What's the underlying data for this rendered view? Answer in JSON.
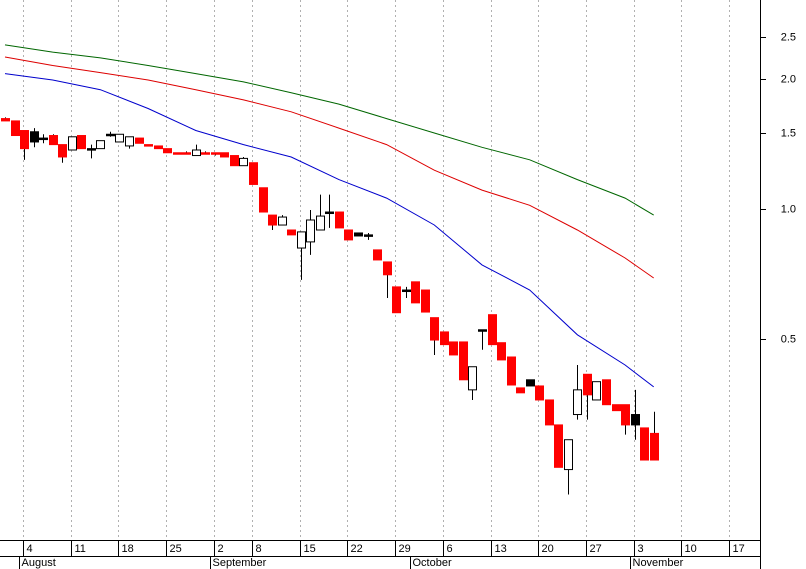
{
  "chart_data": {
    "type": "candlestick",
    "log_scale": true,
    "grid": true,
    "xlim": [
      -0.52,
      79.14
    ],
    "ylim": [
      0.171,
      3.05
    ],
    "yticks": [
      0.5,
      {
        "value": 1,
        "label": "1.0"
      },
      1.5,
      {
        "value": 2,
        "label": "2.0"
      },
      2.5
    ],
    "xticks": [
      {
        "value": 2,
        "label": "4"
      },
      {
        "value": 7,
        "label": "11"
      },
      {
        "value": 12,
        "label": "18"
      },
      {
        "value": 17,
        "label": "25"
      },
      {
        "value": 22,
        "label": "2"
      },
      {
        "value": 26,
        "label": "8"
      },
      {
        "value": 31,
        "label": "15"
      },
      {
        "value": 36,
        "label": "22"
      },
      {
        "value": 41,
        "label": "29"
      },
      {
        "value": 46,
        "label": "6"
      },
      {
        "value": 51,
        "label": "13"
      },
      {
        "value": 56,
        "label": "20"
      },
      {
        "value": 61,
        "label": "27"
      },
      {
        "value": 66,
        "label": "3"
      },
      {
        "value": 71,
        "label": "10"
      },
      {
        "value": 76,
        "label": "17"
      }
    ],
    "months": [
      {
        "value": 2,
        "label": "August"
      },
      {
        "value": 22,
        "label": "September"
      },
      {
        "value": 43,
        "label": "October"
      },
      {
        "value": 66,
        "label": "November"
      }
    ],
    "candles": {
      "x": [
        0,
        1,
        2,
        3,
        4,
        5,
        6,
        7,
        8,
        9,
        10,
        11,
        12,
        13,
        14,
        15,
        16,
        17,
        18,
        19,
        20,
        21,
        22,
        23,
        24,
        25,
        26,
        27,
        28,
        29,
        30,
        31,
        32,
        33,
        34,
        35,
        36,
        37,
        38,
        39,
        40,
        41,
        42,
        43,
        44,
        45,
        46,
        47,
        48,
        49,
        50,
        51,
        52,
        53,
        54,
        55,
        56,
        57,
        58,
        59,
        60,
        61,
        62,
        63,
        64,
        65,
        66,
        67,
        68
      ],
      "open": [
        1.62,
        1.6,
        1.52,
        1.51,
        1.46,
        1.48,
        1.41,
        1.37,
        1.48,
        1.38,
        1.38,
        1.49,
        1.43,
        1.4,
        1.46,
        1.41,
        1.4,
        1.38,
        1.35,
        1.35,
        1.33,
        1.35,
        1.35,
        1.35,
        1.33,
        1.26,
        1.28,
        1.12,
        0.968,
        0.918,
        0.894,
        0.812,
        0.839,
        0.894,
        0.984,
        0.984,
        0.894,
        0.88,
        0.871,
        0.804,
        0.754,
        0.66,
        0.649,
        0.678,
        0.649,
        0.56,
        0.519,
        0.492,
        0.492,
        0.381,
        0.525,
        0.569,
        0.49,
        0.454,
        0.385,
        0.402,
        0.389,
        0.361,
        0.316,
        0.249,
        0.334,
        0.414,
        0.361,
        0.402,
        0.352,
        0.352,
        0.334,
        0.311,
        0.302
      ],
      "high": [
        1.63,
        1.6,
        1.52,
        1.54,
        1.49,
        1.49,
        1.41,
        1.47,
        1.48,
        1.41,
        1.44,
        1.51,
        1.49,
        1.47,
        1.46,
        1.41,
        1.4,
        1.38,
        1.35,
        1.36,
        1.41,
        1.36,
        1.35,
        1.35,
        1.33,
        1.32,
        1.28,
        1.12,
        0.968,
        0.968,
        0.894,
        0.885,
        0.995,
        1.08,
        1.08,
        0.984,
        0.894,
        0.88,
        0.88,
        0.804,
        0.754,
        0.66,
        0.66,
        0.678,
        0.649,
        0.56,
        0.519,
        0.492,
        0.492,
        0.431,
        0.525,
        0.569,
        0.49,
        0.454,
        0.385,
        0.402,
        0.389,
        0.361,
        0.316,
        0.292,
        0.435,
        0.414,
        0.398,
        0.402,
        0.352,
        0.352,
        0.381,
        0.311,
        0.339
      ],
      "low": [
        1.6,
        1.48,
        1.3,
        1.39,
        1.42,
        1.41,
        1.28,
        1.37,
        1.38,
        1.31,
        1.38,
        1.47,
        1.43,
        1.38,
        1.42,
        1.4,
        1.38,
        1.35,
        1.34,
        1.34,
        1.33,
        1.34,
        1.33,
        1.32,
        1.26,
        1.26,
        1.14,
        0.984,
        0.894,
        0.918,
        0.871,
        0.685,
        0.783,
        0.894,
        0.904,
        0.904,
        0.848,
        0.866,
        0.848,
        0.762,
        0.622,
        0.575,
        0.622,
        0.606,
        0.577,
        0.459,
        0.485,
        0.459,
        0.402,
        0.361,
        0.472,
        0.485,
        0.447,
        0.391,
        0.375,
        0.389,
        0.361,
        0.316,
        0.252,
        0.218,
        0.325,
        0.325,
        0.361,
        0.352,
        0.341,
        0.3,
        0.292,
        0.262,
        0.262
      ],
      "close": [
        1.6,
        1.48,
        1.38,
        1.43,
        1.46,
        1.41,
        1.32,
        1.47,
        1.38,
        1.38,
        1.44,
        1.49,
        1.49,
        1.47,
        1.42,
        1.4,
        1.38,
        1.35,
        1.34,
        1.34,
        1.37,
        1.34,
        1.34,
        1.32,
        1.26,
        1.31,
        1.14,
        0.984,
        0.918,
        0.958,
        0.871,
        0.885,
        0.943,
        0.963,
        0.984,
        0.904,
        0.848,
        0.866,
        0.871,
        0.762,
        0.704,
        0.575,
        0.649,
        0.606,
        0.577,
        0.497,
        0.485,
        0.459,
        0.402,
        0.431,
        0.525,
        0.485,
        0.447,
        0.391,
        0.375,
        0.389,
        0.361,
        0.316,
        0.252,
        0.292,
        0.381,
        0.371,
        0.398,
        0.352,
        0.341,
        0.316,
        0.316,
        0.262,
        0.262
      ],
      "colors": [
        "#ff0000",
        "#ff0000",
        "#ff0000",
        "#000000",
        "#000000",
        "#ff0000",
        "#ff0000",
        "#ffffff",
        "#ff0000",
        "#000000",
        "#ffffff",
        "#000000",
        "#ffffff",
        "#ffffff",
        "#ff0000",
        "#ff0000",
        "#ff0000",
        "#ff0000",
        "#ff0000",
        "#ff0000",
        "#ffffff",
        "#ff0000",
        "#ff0000",
        "#ff0000",
        "#ff0000",
        "#ffffff",
        "#ff0000",
        "#ff0000",
        "#ff0000",
        "#ffffff",
        "#ff0000",
        "#ffffff",
        "#ffffff",
        "#ffffff",
        "#000000",
        "#ff0000",
        "#ff0000",
        "#000000",
        "#000000",
        "#ff0000",
        "#ff0000",
        "#ff0000",
        "#000000",
        "#ff0000",
        "#ff0000",
        "#ff0000",
        "#ff0000",
        "#ff0000",
        "#ff0000",
        "#ffffff",
        "#000000",
        "#ff0000",
        "#ff0000",
        "#ff0000",
        "#ff0000",
        "#000000",
        "#ff0000",
        "#ff0000",
        "#ff0000",
        "#ffffff",
        "#ffffff",
        "#ff0000",
        "#ffffff",
        "#ff0000",
        "#ff0000",
        "#ff0000",
        "#000000",
        "#ff0000",
        "#ff0000"
      ]
    },
    "lines": [
      {
        "color": "#0000cc",
        "x": [
          0,
          5,
          10,
          15,
          20,
          25,
          30,
          35,
          40,
          45,
          50,
          55,
          60,
          65,
          68
        ],
        "values": [
          2.06,
          1.99,
          1.89,
          1.71,
          1.52,
          1.41,
          1.32,
          1.17,
          1.06,
          0.918,
          0.742,
          0.649,
          0.511,
          0.435,
          0.387
        ]
      },
      {
        "color": "#dd0000",
        "x": [
          0,
          5,
          10,
          15,
          20,
          25,
          30,
          35,
          40,
          45,
          50,
          55,
          60,
          65,
          68
        ],
        "values": [
          2.25,
          2.15,
          2.07,
          1.99,
          1.89,
          1.79,
          1.68,
          1.54,
          1.41,
          1.23,
          1.106,
          1.02,
          0.894,
          0.77,
          0.692
        ]
      },
      {
        "color": "#006600",
        "x": [
          0,
          5,
          10,
          15,
          20,
          25,
          30,
          35,
          40,
          45,
          50,
          55,
          60,
          65,
          68
        ],
        "values": [
          2.4,
          2.31,
          2.24,
          2.15,
          2.06,
          1.97,
          1.86,
          1.75,
          1.62,
          1.5,
          1.39,
          1.3,
          1.17,
          1.06,
          0.968
        ]
      }
    ]
  }
}
